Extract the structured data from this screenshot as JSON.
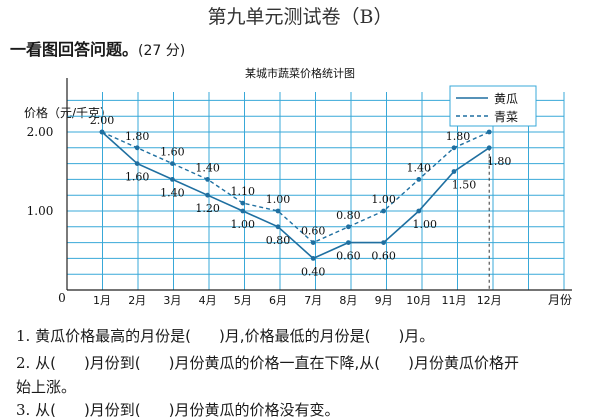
{
  "page": {
    "title": "第九单元测试卷（B）",
    "section_label": "一看图回答问题。",
    "section_points": "(27 分)"
  },
  "chart_data": {
    "type": "line",
    "title": "某城市蔬菜价格统计图",
    "ylabel": "价格（元/千克）",
    "xlabel": "月份",
    "origin_label": "0",
    "categories": [
      "1月",
      "2月",
      "3月",
      "4月",
      "5月",
      "6月",
      "7月",
      "8月",
      "9月",
      "10月",
      "11月",
      "12月"
    ],
    "yticks": [
      {
        "value": 1.0,
        "label": "1.00"
      },
      {
        "value": 2.0,
        "label": "2.00"
      }
    ],
    "ylim": [
      0,
      2.3
    ],
    "grid": true,
    "legend_position": "top-right",
    "series": [
      {
        "name": "黄瓜",
        "style": "solid",
        "values": [
          2.0,
          1.6,
          1.4,
          1.2,
          1.0,
          0.8,
          0.4,
          0.6,
          0.6,
          1.0,
          1.5,
          1.8
        ],
        "labels": [
          "",
          "1.60",
          "1.40",
          "1.20",
          "1.00",
          "0.80",
          "0.40",
          "0.60",
          "0.60",
          "1.00",
          "1.50",
          "1.80"
        ]
      },
      {
        "name": "青菜",
        "style": "dashed",
        "values": [
          2.0,
          1.8,
          1.6,
          1.4,
          1.1,
          1.0,
          0.6,
          0.8,
          1.0,
          1.4,
          1.8,
          2.0
        ],
        "labels": [
          "2.00",
          "1.80",
          "1.60",
          "1.40",
          "1.10",
          "1.00",
          "0.60",
          "0.80",
          "1.00",
          "1.40",
          "1.80",
          "2.00"
        ]
      }
    ],
    "colors": {
      "grid": "#38a8d8",
      "line": "#1f6fa0",
      "background": "#ffffff"
    }
  },
  "questions": {
    "q1": {
      "num": "1.",
      "a": "黄瓜价格最高的月份是(",
      "b": ")月,价格最低的月份是(",
      "c": ")月。"
    },
    "q2": {
      "num": "2.",
      "a": "从(",
      "b": ")月份到(",
      "c": ")月份黄瓜的价格一直在下降,从(",
      "d": ")月份黄瓜价格开",
      "e": "始上涨。"
    },
    "q3": {
      "num": "3.",
      "a": "从(",
      "b": ")月份到(",
      "c": ")月份黄瓜的价格没有变。"
    }
  }
}
